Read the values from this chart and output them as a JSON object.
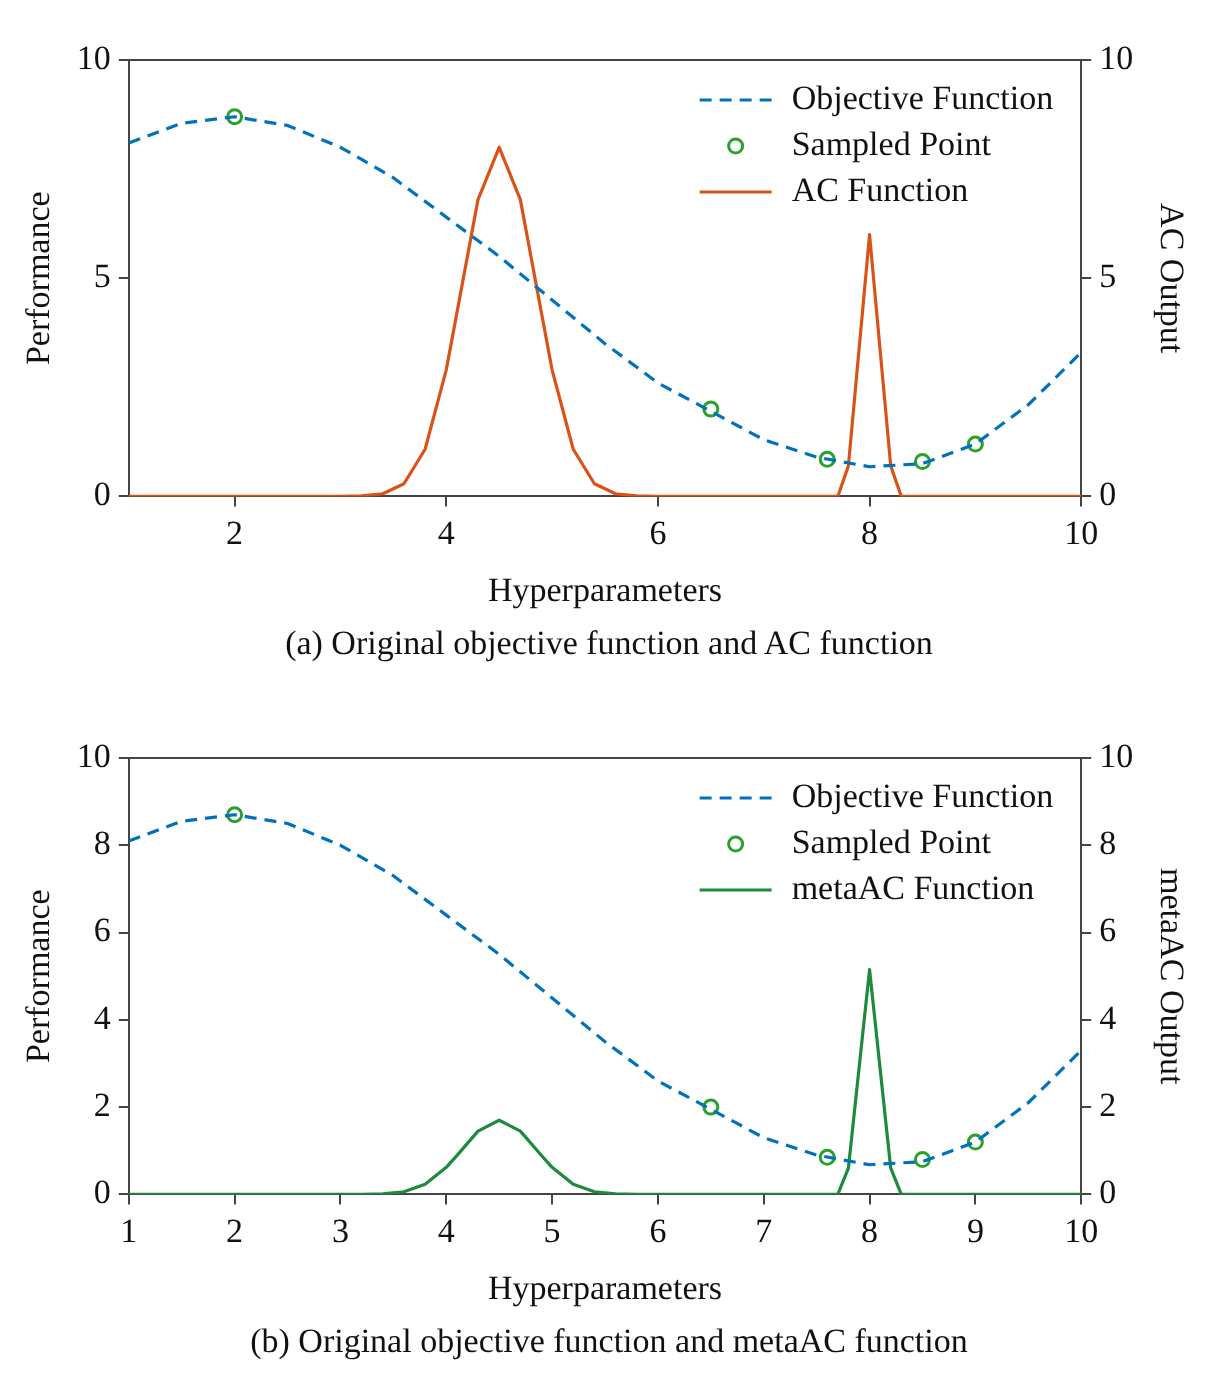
{
  "chart_data": [
    {
      "type": "line",
      "xlabel": "Hyperparameters",
      "ylabel": "Performance",
      "y2label": "AC Output",
      "xlim": [
        1,
        10
      ],
      "xticks": [
        2,
        4,
        6,
        8,
        10
      ],
      "ylim": [
        0,
        10
      ],
      "yticks": [
        0,
        5,
        10
      ],
      "y2lim": [
        0,
        10
      ],
      "y2ticks": [
        0,
        5,
        10
      ],
      "legend": "top right",
      "annotations": [
        "(a)  Original objective function and AC function"
      ],
      "series": [
        {
          "type": "line",
          "name": "Objective Function",
          "color": "#0072bd",
          "line_style": "dashed",
          "marker": "none",
          "x": [
            1,
            1.5,
            2,
            2.5,
            3,
            3.5,
            4,
            4.5,
            5,
            5.5,
            6,
            6.5,
            7,
            7.5,
            8,
            8.5,
            9,
            9.5,
            10
          ],
          "values": [
            8.1,
            8.55,
            8.7,
            8.5,
            8.0,
            7.3,
            6.4,
            5.5,
            4.5,
            3.5,
            2.6,
            1.95,
            1.3,
            0.9,
            0.68,
            0.75,
            1.2,
            2.1,
            3.3
          ]
        },
        {
          "type": "scatter",
          "name": "Sampled Point",
          "color": "#2ca02c",
          "marker": "circle",
          "x": [
            2,
            6.5,
            7.6,
            8.5,
            9
          ],
          "values": [
            8.7,
            2.0,
            0.85,
            0.8,
            1.2
          ]
        },
        {
          "type": "line",
          "name": "AC Function",
          "color": "#d95319",
          "line_style": "solid",
          "marker": "none",
          "axis": "y2",
          "x": [
            1,
            3,
            3.2,
            3.4,
            3.6,
            3.8,
            4,
            4.1,
            4.3,
            4.5,
            4.7,
            4.9,
            5,
            5.2,
            5.4,
            5.6,
            5.8,
            6,
            7.7,
            7.8,
            8,
            8.2,
            8.3,
            10
          ],
          "values": [
            0,
            0,
            0.01,
            0.06,
            0.29,
            1.08,
            2.9,
            4.2,
            6.8,
            8,
            6.8,
            4.2,
            2.9,
            1.08,
            0.29,
            0.06,
            0.01,
            0,
            0,
            0.7,
            6,
            0.7,
            0,
            0
          ]
        }
      ]
    },
    {
      "type": "line",
      "xlabel": "Hyperparameters",
      "ylabel": "Performance",
      "y2label": "metaAC Output",
      "xlim": [
        1,
        10
      ],
      "xticks": [
        1,
        2,
        3,
        4,
        5,
        6,
        7,
        8,
        9,
        10
      ],
      "ylim": [
        0,
        10
      ],
      "yticks": [
        0,
        2,
        4,
        6,
        8,
        10
      ],
      "y2lim": [
        0,
        10
      ],
      "y2ticks": [
        0,
        2,
        4,
        6,
        8,
        10
      ],
      "legend": "top right",
      "annotations": [
        "(b)  Original objective function and metaAC function"
      ],
      "series": [
        {
          "type": "line",
          "name": "Objective Function",
          "color": "#0072bd",
          "line_style": "dashed",
          "marker": "none",
          "x": [
            1,
            1.5,
            2,
            2.5,
            3,
            3.5,
            4,
            4.5,
            5,
            5.5,
            6,
            6.5,
            7,
            7.5,
            8,
            8.5,
            9,
            9.5,
            10
          ],
          "values": [
            8.1,
            8.55,
            8.7,
            8.5,
            8.0,
            7.3,
            6.4,
            5.5,
            4.5,
            3.5,
            2.6,
            1.95,
            1.3,
            0.9,
            0.68,
            0.75,
            1.2,
            2.1,
            3.3
          ]
        },
        {
          "type": "scatter",
          "name": "Sampled Point",
          "color": "#2ca02c",
          "marker": "circle",
          "x": [
            2,
            6.5,
            7.6,
            8.5,
            9
          ],
          "values": [
            8.7,
            2.0,
            0.85,
            0.8,
            1.2
          ]
        },
        {
          "type": "line",
          "name": "metaAC Function",
          "color": "#1e8a3c",
          "line_style": "solid",
          "marker": "none",
          "axis": "y2",
          "x": [
            1,
            3,
            3.2,
            3.4,
            3.6,
            3.8,
            4,
            4.1,
            4.3,
            4.5,
            4.7,
            4.9,
            5,
            5.2,
            5.4,
            5.6,
            5.8,
            6,
            7.7,
            7.8,
            8,
            8.2,
            8.3,
            10
          ],
          "values": [
            0,
            0,
            0,
            0.01,
            0.06,
            0.23,
            0.62,
            0.89,
            1.45,
            1.7,
            1.45,
            0.89,
            0.62,
            0.23,
            0.06,
            0.01,
            0,
            0,
            0,
            0.6,
            5.15,
            0.6,
            0,
            0
          ]
        }
      ]
    }
  ]
}
